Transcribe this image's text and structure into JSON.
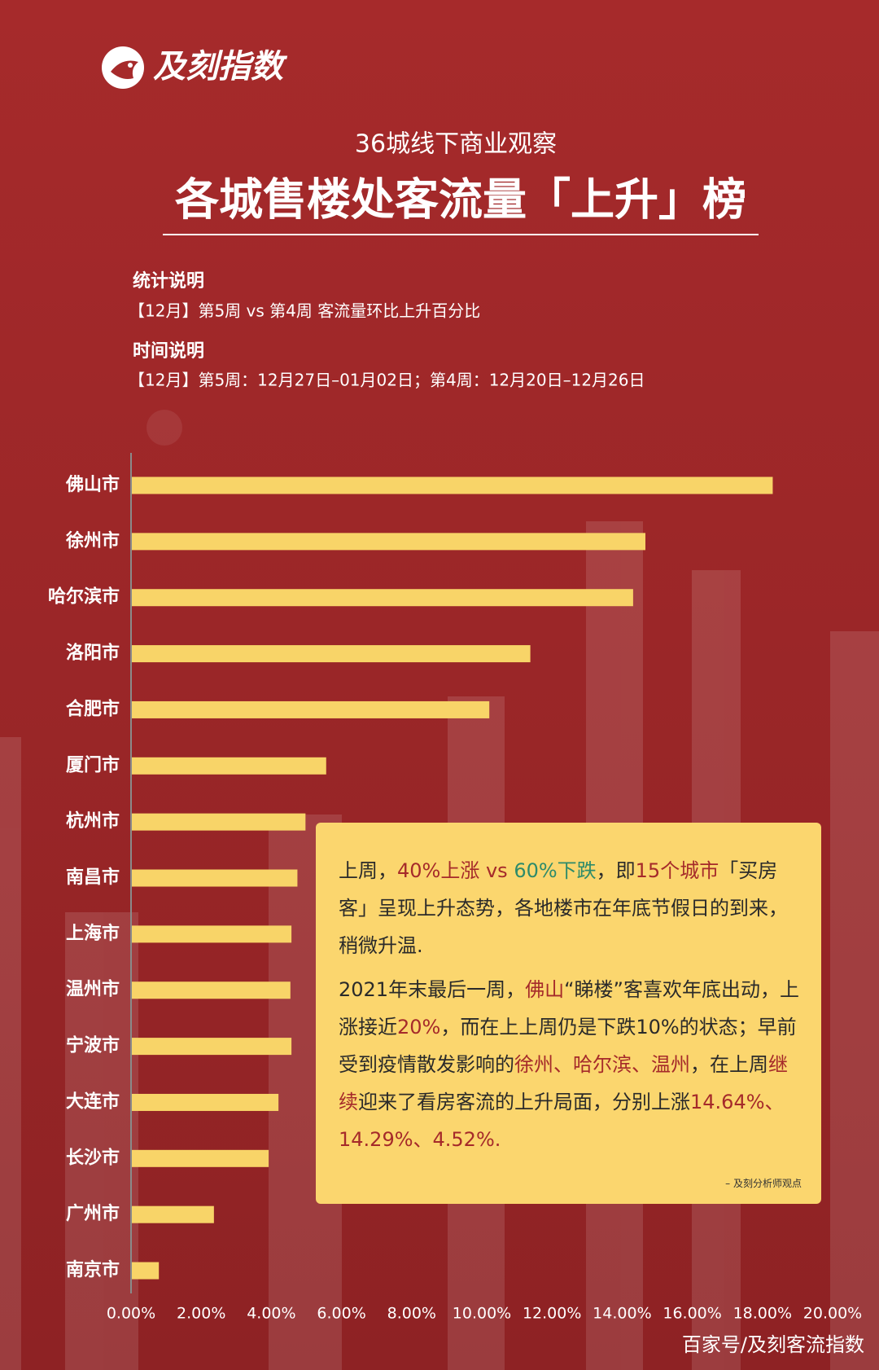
{
  "logo": "及刻指数",
  "footer": "百家号/及刻客流指数",
  "notes": {
    "stat_title": "统计说明",
    "stat_text": "【12月】第5周 vs 第4周 客流量环比上升百分比",
    "time_title": "时间说明",
    "time_text": "【12月】第5周：12月27日–01月02日；第4周：12月20日–12月26日"
  },
  "chart_data": {
    "type": "hbar",
    "subtitle": "36城线下商业观察",
    "title": "各城售楼处客流量「上升」榜",
    "categories": [
      "佛山市",
      "徐州市",
      "哈尔滨市",
      "洛阳市",
      "合肥市",
      "厦门市",
      "杭州市",
      "南昌市",
      "上海市",
      "温州市",
      "宁波市",
      "大连市",
      "长沙市",
      "广州市",
      "南京市"
    ],
    "values": [
      18.27,
      14.64,
      14.29,
      11.36,
      10.19,
      5.54,
      4.95,
      4.72,
      4.55,
      4.52,
      4.55,
      4.18,
      3.9,
      2.34,
      0.77
    ],
    "color": "#f8d468",
    "xlim": [
      0,
      20
    ],
    "xticks": [
      {
        "value": 0,
        "label": "0.00%"
      },
      {
        "value": 2,
        "label": "2.00%"
      },
      {
        "value": 4,
        "label": "4.00%"
      },
      {
        "value": 6,
        "label": "6.00%"
      },
      {
        "value": 8,
        "label": "8.00%"
      },
      {
        "value": 10,
        "label": "10.00%"
      },
      {
        "value": 12,
        "label": "12.00%"
      },
      {
        "value": 14,
        "label": "14.00%"
      },
      {
        "value": 16,
        "label": "16.00%"
      },
      {
        "value": 18,
        "label": "18.00%"
      },
      {
        "value": 20,
        "label": "20.00%"
      }
    ]
  },
  "callout": {
    "paragraphs": [
      [
        {
          "text": "上周，"
        },
        {
          "text": "40%上涨 vs ",
          "color": "#a52a2a"
        },
        {
          "text": "60%下跌",
          "color": "#2e8b6a"
        },
        {
          "text": "，即"
        },
        {
          "text": "15个城市",
          "color": "#a52a2a"
        },
        {
          "text": "「买房客」呈现上升态势，各地楼市在年底节假日的到来，稍微升温."
        }
      ],
      [
        {
          "text": "2021年末最后一周，"
        },
        {
          "text": "佛山",
          "color": "#a52a2a"
        },
        {
          "text": "“睇楼”客喜欢年底出动，上涨接近"
        },
        {
          "text": "20%",
          "color": "#a52a2a"
        },
        {
          "text": "，而在上上周仍是下跌10%的状态；早前受到疫情散发影响的"
        },
        {
          "text": "徐州、哈尔滨、温州",
          "color": "#a52a2a"
        },
        {
          "text": "，在上周"
        },
        {
          "text": "继续",
          "color": "#a52a2a"
        },
        {
          "text": "迎来了看房客流的上升局面，分别上涨"
        },
        {
          "text": "14.64%、14.29%、4.52%.",
          "color": "#a52a2a"
        }
      ]
    ],
    "signature": "– 及刻分析师观点"
  }
}
